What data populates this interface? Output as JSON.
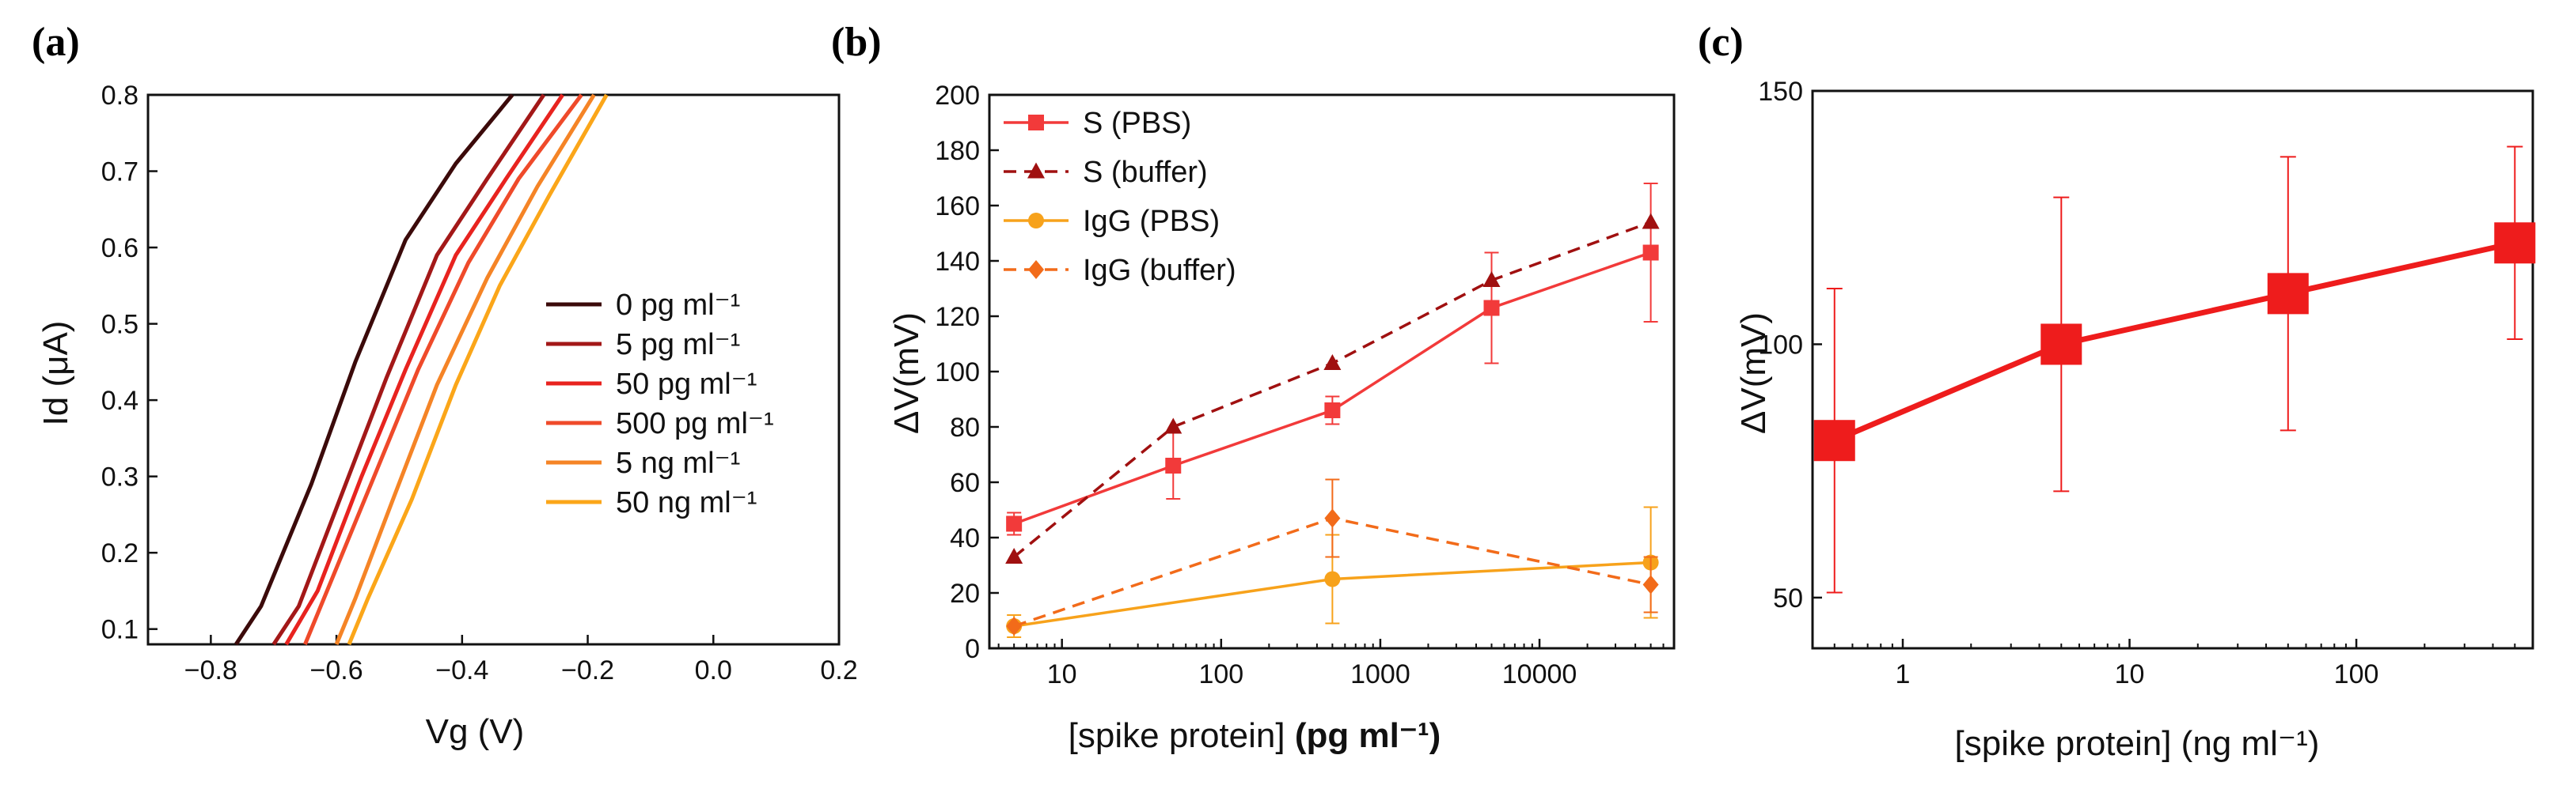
{
  "chart_data": [
    {
      "panel": "(a)",
      "type": "line",
      "xlabel": "Vg (V)",
      "ylabel": "Id (μA)",
      "xlim": [
        -0.9,
        0.2
      ],
      "ylim": [
        0.08,
        0.8
      ],
      "x_ticks": [
        "−0.8",
        "−0.6",
        "−0.4",
        "−0.2",
        "0.0",
        "0.2"
      ],
      "x_tick_values": [
        -0.8,
        -0.6,
        -0.4,
        -0.2,
        0.0,
        0.2
      ],
      "y_ticks": [
        "0.1",
        "0.2",
        "0.3",
        "0.4",
        "0.5",
        "0.6",
        "0.7",
        "0.8"
      ],
      "y_tick_values": [
        0.1,
        0.2,
        0.3,
        0.4,
        0.5,
        0.6,
        0.7,
        0.8
      ],
      "legend_position": "center-right",
      "series": [
        {
          "name": "0 pg ml⁻¹",
          "color": "#3b0a0a",
          "x": [
            -0.76,
            -0.72,
            -0.64,
            -0.57,
            -0.49,
            -0.41,
            -0.32
          ],
          "y": [
            0.08,
            0.13,
            0.29,
            0.45,
            0.61,
            0.71,
            0.8
          ]
        },
        {
          "name": "5 pg ml⁻¹",
          "color": "#a31818",
          "x": [
            -0.7,
            -0.66,
            -0.59,
            -0.52,
            -0.44,
            -0.36,
            -0.27
          ],
          "y": [
            0.08,
            0.13,
            0.28,
            0.43,
            0.59,
            0.69,
            0.8
          ]
        },
        {
          "name": "50 pg ml⁻¹",
          "color": "#e8231f",
          "x": [
            -0.68,
            -0.63,
            -0.56,
            -0.49,
            -0.41,
            -0.33,
            -0.24
          ],
          "y": [
            0.08,
            0.15,
            0.3,
            0.44,
            0.59,
            0.69,
            0.8
          ]
        },
        {
          "name": "500 pg ml⁻¹",
          "color": "#ef4a2a",
          "x": [
            -0.65,
            -0.61,
            -0.54,
            -0.47,
            -0.39,
            -0.31,
            -0.21
          ],
          "y": [
            0.08,
            0.16,
            0.3,
            0.44,
            0.58,
            0.69,
            0.8
          ]
        },
        {
          "name": "5 ng ml⁻¹",
          "color": "#f58426",
          "x": [
            -0.6,
            -0.57,
            -0.51,
            -0.44,
            -0.36,
            -0.28,
            -0.19
          ],
          "y": [
            0.08,
            0.14,
            0.27,
            0.42,
            0.56,
            0.68,
            0.8
          ]
        },
        {
          "name": "50 ng ml⁻¹",
          "color": "#fba619",
          "x": [
            -0.58,
            -0.55,
            -0.48,
            -0.41,
            -0.34,
            -0.26,
            -0.17
          ],
          "y": [
            0.08,
            0.14,
            0.27,
            0.42,
            0.55,
            0.67,
            0.8
          ]
        }
      ]
    },
    {
      "panel": "(b)",
      "type": "line",
      "xlabel_main": "[spike protein] ",
      "xlabel_unit": "(pg ml⁻¹)",
      "ylabel": "ΔV(mV)",
      "x_scale": "log",
      "xlim": [
        3.5,
        70000
      ],
      "ylim": [
        0,
        200
      ],
      "x_ticks": [
        "10",
        "100",
        "1000",
        "10000"
      ],
      "x_tick_values": [
        10,
        100,
        1000,
        10000
      ],
      "y_ticks": [
        "0",
        "20",
        "40",
        "60",
        "80",
        "100",
        "120",
        "140",
        "160",
        "180",
        "200"
      ],
      "y_tick_values": [
        0,
        20,
        40,
        60,
        80,
        100,
        120,
        140,
        160,
        180,
        200
      ],
      "legend_position": "top-left",
      "series": [
        {
          "name": "S (PBS)",
          "color": "#f23a3a",
          "dashed": false,
          "marker": "square",
          "x": [
            5,
            50,
            500,
            5000,
            50000
          ],
          "y": [
            45,
            66,
            86,
            123,
            143
          ],
          "err": [
            4,
            12,
            5,
            20,
            25
          ]
        },
        {
          "name": "S (buffer)",
          "color": "#a01010",
          "dashed": true,
          "marker": "triangle",
          "x": [
            5,
            50,
            500,
            5000,
            50000
          ],
          "y": [
            33,
            80,
            103,
            133,
            154
          ],
          "err": [
            0,
            0,
            0,
            0,
            0
          ]
        },
        {
          "name": "IgG (PBS)",
          "color": "#f7a21b",
          "dashed": false,
          "marker": "circle",
          "x": [
            5,
            500,
            50000
          ],
          "y": [
            8,
            25,
            31
          ],
          "err": [
            4,
            16,
            20
          ]
        },
        {
          "name": "IgG (buffer)",
          "color": "#f26b1a",
          "dashed": true,
          "marker": "diamond",
          "x": [
            5,
            500,
            50000
          ],
          "y": [
            8,
            47,
            23
          ],
          "err": [
            0,
            14,
            10
          ]
        }
      ]
    },
    {
      "panel": "(c)",
      "type": "line",
      "xlabel": "[spike protein] (ng ml⁻¹)",
      "ylabel": "ΔV(mV)",
      "x_scale": "log",
      "xlim": [
        0.4,
        600
      ],
      "ylim": [
        40,
        150
      ],
      "x_ticks": [
        "1",
        "10",
        "100"
      ],
      "x_tick_values": [
        1,
        10,
        100
      ],
      "y_ticks": [
        "50",
        "100",
        "150"
      ],
      "y_tick_values": [
        50,
        100,
        150
      ],
      "series": [
        {
          "name": "",
          "color": "#ee1c1c",
          "marker": "square",
          "x": [
            0.5,
            5,
            50,
            500
          ],
          "y": [
            81,
            100,
            110,
            120
          ],
          "err": [
            30,
            29,
            27,
            19
          ]
        }
      ]
    }
  ]
}
